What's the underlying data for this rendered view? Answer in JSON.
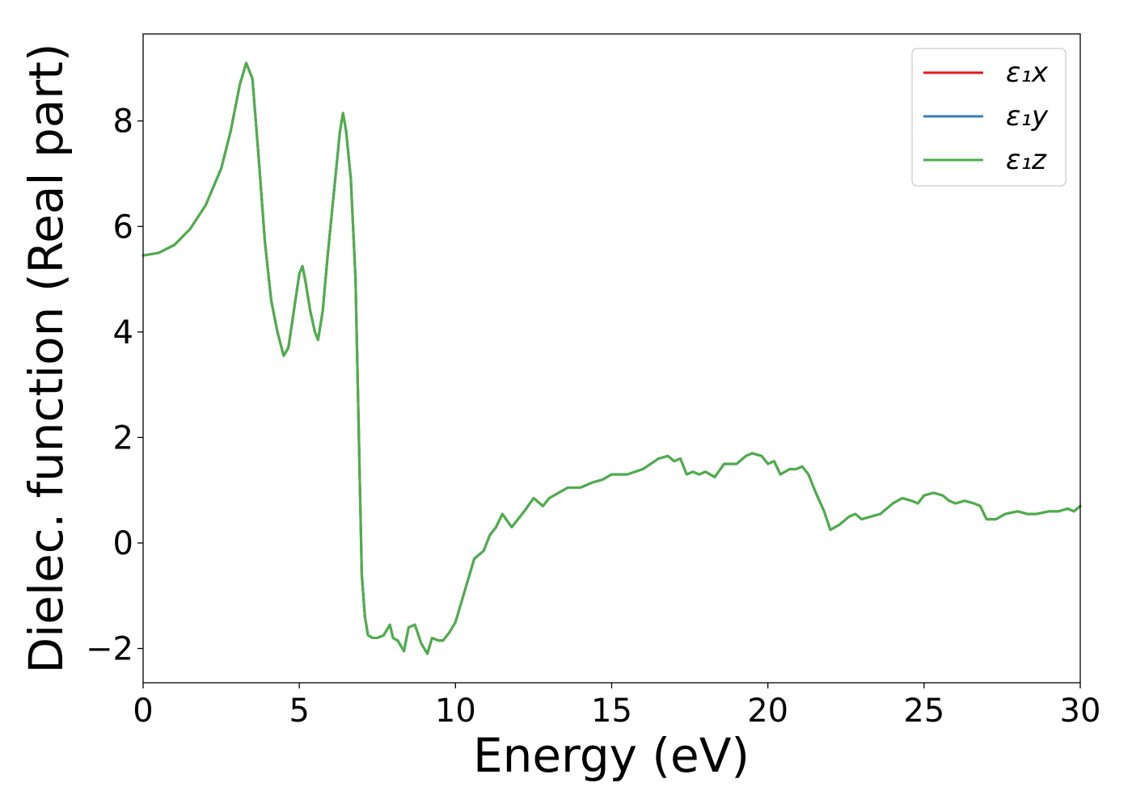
{
  "chart_data": {
    "type": "line",
    "title": "",
    "xlabel": "Energy (eV)",
    "ylabel": "Dielec. function (Real part)",
    "xlim": [
      0,
      30
    ],
    "ylim": [
      -2.65,
      9.65
    ],
    "xticks": [
      0,
      5,
      10,
      15,
      20,
      25,
      30
    ],
    "xtick_labels": [
      "0",
      "5",
      "10",
      "15",
      "20",
      "25",
      "30"
    ],
    "yticks": [
      -2,
      0,
      2,
      4,
      6,
      8
    ],
    "ytick_labels": [
      "−2",
      "0",
      "2",
      "4",
      "6",
      "8"
    ],
    "grid": false,
    "legend_position": "top-right",
    "x": [
      0,
      0.5,
      1.0,
      1.5,
      2.0,
      2.5,
      2.8,
      3.1,
      3.3,
      3.5,
      3.7,
      3.9,
      4.1,
      4.3,
      4.5,
      4.65,
      4.8,
      5.0,
      5.1,
      5.2,
      5.35,
      5.5,
      5.6,
      5.75,
      5.9,
      6.0,
      6.15,
      6.3,
      6.4,
      6.5,
      6.65,
      6.8,
      6.9,
      7.0,
      7.1,
      7.2,
      7.35,
      7.5,
      7.7,
      7.9,
      8.0,
      8.15,
      8.35,
      8.5,
      8.7,
      8.9,
      9.1,
      9.25,
      9.45,
      9.6,
      9.8,
      10.0,
      10.3,
      10.6,
      10.9,
      11.1,
      11.3,
      11.5,
      11.8,
      12.0,
      12.2,
      12.5,
      12.8,
      13.0,
      13.3,
      13.6,
      14.0,
      14.4,
      14.7,
      15.0,
      15.5,
      16.0,
      16.5,
      16.8,
      17.0,
      17.2,
      17.4,
      17.6,
      17.8,
      18.0,
      18.3,
      18.6,
      19.0,
      19.3,
      19.5,
      19.8,
      20.0,
      20.2,
      20.4,
      20.7,
      20.9,
      21.1,
      21.3,
      21.5,
      21.8,
      22.0,
      22.3,
      22.6,
      22.8,
      23.0,
      23.3,
      23.6,
      24.0,
      24.3,
      24.6,
      24.8,
      25.0,
      25.3,
      25.6,
      25.8,
      26.0,
      26.3,
      26.6,
      26.8,
      27.0,
      27.3,
      27.6,
      28.0,
      28.3,
      28.6,
      29.0,
      29.3,
      29.6,
      29.8,
      30.0
    ],
    "series": [
      {
        "name": "ε₁x",
        "color": "#e41a1c",
        "values": [
          5.45,
          5.5,
          5.65,
          5.95,
          6.4,
          7.1,
          7.8,
          8.7,
          9.1,
          8.8,
          7.3,
          5.7,
          4.6,
          4.0,
          3.55,
          3.7,
          4.3,
          5.1,
          5.25,
          4.95,
          4.4,
          4.0,
          3.85,
          4.4,
          5.4,
          6.0,
          6.9,
          7.8,
          8.15,
          7.8,
          6.9,
          5.0,
          2.2,
          -0.6,
          -1.4,
          -1.75,
          -1.8,
          -1.8,
          -1.75,
          -1.55,
          -1.8,
          -1.85,
          -2.05,
          -1.6,
          -1.55,
          -1.9,
          -2.1,
          -1.8,
          -1.85,
          -1.85,
          -1.7,
          -1.5,
          -0.9,
          -0.3,
          -0.15,
          0.15,
          0.3,
          0.55,
          0.3,
          0.45,
          0.6,
          0.85,
          0.7,
          0.85,
          0.95,
          1.05,
          1.05,
          1.15,
          1.2,
          1.3,
          1.3,
          1.4,
          1.6,
          1.65,
          1.55,
          1.6,
          1.3,
          1.35,
          1.3,
          1.35,
          1.25,
          1.5,
          1.5,
          1.65,
          1.7,
          1.65,
          1.5,
          1.55,
          1.3,
          1.4,
          1.4,
          1.45,
          1.3,
          1.0,
          0.6,
          0.25,
          0.35,
          0.5,
          0.55,
          0.45,
          0.5,
          0.55,
          0.75,
          0.85,
          0.8,
          0.75,
          0.9,
          0.95,
          0.9,
          0.8,
          0.75,
          0.8,
          0.75,
          0.7,
          0.45,
          0.45,
          0.55,
          0.6,
          0.55,
          0.55,
          0.6,
          0.6,
          0.65,
          0.6,
          0.7
        ]
      },
      {
        "name": "ε₁y",
        "color": "#377eb8",
        "values": [
          5.45,
          5.5,
          5.65,
          5.95,
          6.4,
          7.1,
          7.8,
          8.7,
          9.1,
          8.8,
          7.3,
          5.7,
          4.6,
          4.0,
          3.55,
          3.7,
          4.3,
          5.1,
          5.25,
          4.95,
          4.4,
          4.0,
          3.85,
          4.4,
          5.4,
          6.0,
          6.9,
          7.8,
          8.15,
          7.8,
          6.9,
          5.0,
          2.2,
          -0.6,
          -1.4,
          -1.75,
          -1.8,
          -1.8,
          -1.75,
          -1.55,
          -1.8,
          -1.85,
          -2.05,
          -1.6,
          -1.55,
          -1.9,
          -2.1,
          -1.8,
          -1.85,
          -1.85,
          -1.7,
          -1.5,
          -0.9,
          -0.3,
          -0.15,
          0.15,
          0.3,
          0.55,
          0.3,
          0.45,
          0.6,
          0.85,
          0.7,
          0.85,
          0.95,
          1.05,
          1.05,
          1.15,
          1.2,
          1.3,
          1.3,
          1.4,
          1.6,
          1.65,
          1.55,
          1.6,
          1.3,
          1.35,
          1.3,
          1.35,
          1.25,
          1.5,
          1.5,
          1.65,
          1.7,
          1.65,
          1.5,
          1.55,
          1.3,
          1.4,
          1.4,
          1.45,
          1.3,
          1.0,
          0.6,
          0.25,
          0.35,
          0.5,
          0.55,
          0.45,
          0.5,
          0.55,
          0.75,
          0.85,
          0.8,
          0.75,
          0.9,
          0.95,
          0.9,
          0.8,
          0.75,
          0.8,
          0.75,
          0.7,
          0.45,
          0.45,
          0.55,
          0.6,
          0.55,
          0.55,
          0.6,
          0.6,
          0.65,
          0.6,
          0.7
        ]
      },
      {
        "name": "ε₁z",
        "color": "#4daf4a",
        "values": [
          5.45,
          5.5,
          5.65,
          5.95,
          6.4,
          7.1,
          7.8,
          8.7,
          9.1,
          8.8,
          7.3,
          5.7,
          4.6,
          4.0,
          3.55,
          3.7,
          4.3,
          5.1,
          5.25,
          4.95,
          4.4,
          4.0,
          3.85,
          4.4,
          5.4,
          6.0,
          6.9,
          7.8,
          8.15,
          7.8,
          6.9,
          5.0,
          2.2,
          -0.6,
          -1.4,
          -1.75,
          -1.8,
          -1.8,
          -1.75,
          -1.55,
          -1.8,
          -1.85,
          -2.05,
          -1.6,
          -1.55,
          -1.9,
          -2.1,
          -1.8,
          -1.85,
          -1.85,
          -1.7,
          -1.5,
          -0.9,
          -0.3,
          -0.15,
          0.15,
          0.3,
          0.55,
          0.3,
          0.45,
          0.6,
          0.85,
          0.7,
          0.85,
          0.95,
          1.05,
          1.05,
          1.15,
          1.2,
          1.3,
          1.3,
          1.4,
          1.6,
          1.65,
          1.55,
          1.6,
          1.3,
          1.35,
          1.3,
          1.35,
          1.25,
          1.5,
          1.5,
          1.65,
          1.7,
          1.65,
          1.5,
          1.55,
          1.3,
          1.4,
          1.4,
          1.45,
          1.3,
          1.0,
          0.6,
          0.25,
          0.35,
          0.5,
          0.55,
          0.45,
          0.5,
          0.55,
          0.75,
          0.85,
          0.8,
          0.75,
          0.9,
          0.95,
          0.9,
          0.8,
          0.75,
          0.8,
          0.75,
          0.7,
          0.45,
          0.45,
          0.55,
          0.6,
          0.55,
          0.55,
          0.6,
          0.6,
          0.65,
          0.6,
          0.7
        ]
      }
    ]
  }
}
